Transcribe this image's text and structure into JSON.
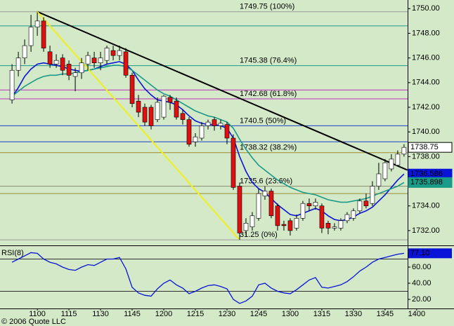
{
  "chart_data": [
    {
      "type": "candlestick",
      "x": [
        648,
        651,
        654,
        657,
        660,
        663,
        666,
        669,
        672,
        675,
        678,
        681,
        684,
        687,
        690,
        693,
        696,
        699,
        702,
        705,
        708,
        711,
        714,
        717,
        720,
        723,
        726,
        729,
        732,
        735,
        738,
        741,
        744,
        747,
        750,
        753,
        756,
        759,
        762,
        765,
        768,
        771,
        774,
        777,
        780,
        783,
        786,
        789,
        792,
        795,
        798,
        801,
        804,
        807,
        810,
        813,
        816,
        819,
        822,
        825,
        828,
        831,
        834
      ],
      "open": [
        1742.6,
        1745,
        1746,
        1747,
        1748.5,
        1749,
        1746.5,
        1745.5,
        1746,
        1745.5,
        1744.5,
        1744.8,
        1745.5,
        1746,
        1745.6,
        1745.8,
        1746.6,
        1746.2,
        1746.5,
        1744.6,
        1742.5,
        1742,
        1742,
        1741,
        1741.2,
        1742.8,
        1742.5,
        1741.5,
        1741,
        1739.2,
        1739.5,
        1740.5,
        1741,
        1740.5,
        1740.6,
        1739.5,
        1735.6,
        1732,
        1732.3,
        1733,
        1734.8,
        1735.2,
        1734,
        1732.5,
        1732.8,
        1732.2,
        1733,
        1734.2,
        1734,
        1734,
        1732.6,
        1732.2,
        1732.2,
        1732.8,
        1733,
        1733.6,
        1734.4,
        1734.2,
        1735.6,
        1736.2,
        1737,
        1737.3,
        1738.2
      ],
      "high": [
        1745.5,
        1746.5,
        1747.5,
        1749.5,
        1749.7,
        1749.3,
        1747,
        1746.3,
        1746.3,
        1745.8,
        1745.2,
        1746,
        1746.5,
        1746.5,
        1746.5,
        1747,
        1747,
        1747,
        1746.8,
        1744.8,
        1743,
        1742.3,
        1742.2,
        1742.8,
        1743,
        1743,
        1742.8,
        1741.8,
        1741.2,
        1739.9,
        1740.8,
        1741,
        1741.2,
        1741,
        1740.8,
        1739.8,
        1735.9,
        1733,
        1733.5,
        1735.4,
        1735.6,
        1735.4,
        1734.2,
        1732.8,
        1733,
        1733.3,
        1734.4,
        1734.6,
        1734.6,
        1734.2,
        1732.8,
        1732.6,
        1733,
        1733.5,
        1733.8,
        1734.6,
        1735,
        1736,
        1737.5,
        1737.8,
        1738.2,
        1738.5,
        1739
      ],
      "low": [
        1742.3,
        1744.5,
        1745.5,
        1746.5,
        1747.8,
        1746.5,
        1745.2,
        1745.2,
        1744.6,
        1744.2,
        1743.3,
        1744.3,
        1745,
        1745.2,
        1745,
        1745.5,
        1745.8,
        1745.8,
        1744.4,
        1742,
        1741.2,
        1740.5,
        1740.2,
        1740.8,
        1741,
        1741.8,
        1741,
        1740.6,
        1738.8,
        1738.8,
        1739.3,
        1740.2,
        1740.1,
        1740.2,
        1739,
        1735.3,
        1731.25,
        1731.6,
        1732,
        1732.8,
        1734.5,
        1733,
        1732,
        1732,
        1731.6,
        1732,
        1732.8,
        1733.6,
        1733.7,
        1731.8,
        1731.7,
        1732,
        1732,
        1732.6,
        1732.8,
        1733.4,
        1733.8,
        1734,
        1735.3,
        1736,
        1736.8,
        1737.2,
        1738
      ],
      "close": [
        1745,
        1746,
        1747,
        1748.5,
        1749,
        1746.8,
        1745.5,
        1745.8,
        1745,
        1744.6,
        1744.8,
        1745.6,
        1746.2,
        1745.6,
        1746,
        1746.8,
        1746.2,
        1746.6,
        1744.6,
        1742.3,
        1741.6,
        1740.8,
        1740.5,
        1742.4,
        1742.9,
        1742.4,
        1741.2,
        1741,
        1739,
        1739.6,
        1740.5,
        1740.8,
        1740.5,
        1740.7,
        1739.5,
        1735.5,
        1731.8,
        1732.6,
        1733.2,
        1735,
        1735.2,
        1733.2,
        1732.4,
        1732.4,
        1732,
        1733,
        1734.2,
        1734,
        1734.3,
        1732.2,
        1732.2,
        1732.3,
        1732.8,
        1733.3,
        1733.6,
        1734.4,
        1734,
        1735.6,
        1736.6,
        1737.5,
        1737.8,
        1738.2,
        1738.75
      ],
      "up_color": "#ffffff",
      "down_color": "#e01010",
      "series": [
        {
          "color": "#0a14d8",
          "values": [
            1742.8,
            1743.6,
            1744.5,
            1745.1,
            1745.5,
            1745.6,
            1745.5,
            1745.4,
            1745.3,
            1745.1,
            1745.0,
            1744.9,
            1745.0,
            1745.1,
            1745.3,
            1745.5,
            1745.6,
            1745.7,
            1745.5,
            1745.0,
            1744.2,
            1743.5,
            1743.0,
            1742.6,
            1742.5,
            1742.4,
            1742.2,
            1741.8,
            1741.3,
            1740.9,
            1740.7,
            1740.6,
            1740.6,
            1740.5,
            1740.3,
            1739.5,
            1738.0,
            1736.8,
            1735.9,
            1735.4,
            1735.1,
            1734.6,
            1734.1,
            1733.7,
            1733.3,
            1733.2,
            1733.4,
            1733.6,
            1733.8,
            1733.6,
            1733.2,
            1732.9,
            1732.8,
            1732.9,
            1733.1,
            1733.4,
            1733.6,
            1733.9,
            1734.4,
            1734.9,
            1735.5,
            1736.1,
            1736.586
          ]
        },
        {
          "color": "#1a9a88",
          "values": [
            1742.9,
            1743.3,
            1743.7,
            1744.0,
            1744.3,
            1744.5,
            1744.6,
            1744.6,
            1744.7,
            1744.7,
            1744.8,
            1744.9,
            1745.0,
            1745.1,
            1745.2,
            1745.3,
            1745.4,
            1745.4,
            1745.3,
            1745.0,
            1744.6,
            1744.2,
            1743.8,
            1743.4,
            1743.1,
            1742.9,
            1742.6,
            1742.3,
            1742.0,
            1741.7,
            1741.5,
            1741.3,
            1741.2,
            1741.0,
            1740.8,
            1740.3,
            1739.4,
            1738.6,
            1737.9,
            1737.3,
            1736.9,
            1736.5,
            1736.1,
            1735.8,
            1735.5,
            1735.3,
            1735.1,
            1735.0,
            1734.9,
            1734.7,
            1734.5,
            1734.4,
            1734.3,
            1734.3,
            1734.4,
            1734.5,
            1734.6,
            1734.8,
            1735.0,
            1735.2,
            1735.4,
            1735.6,
            1735.898
          ]
        }
      ],
      "levels": [
        {
          "label": "1749.75 (100%)",
          "value": 1749.75,
          "color": "#9a9a9a"
        },
        {
          "label": "1745.38 (76.4%)",
          "value": 1745.38,
          "color": "#1a9a88"
        },
        {
          "label": "1742.68 (61.8%)",
          "value": 1742.68,
          "color": "#c030c0"
        },
        {
          "label": "1740.5 (50%)",
          "value": 1740.5,
          "color": "#2040c8"
        },
        {
          "label": "1738.32 (38.2%)",
          "value": 1738.32,
          "color": "#a08a30"
        },
        {
          "label": "1735.6 (23.6%)",
          "value": 1735.6,
          "color": "#8a8a6a"
        },
        {
          "label": "31.25 (0%)",
          "value": 1731.25,
          "color": "#9a9a9a"
        }
      ],
      "hlines": [
        {
          "value": 1748.6,
          "color": "#1a9a88"
        },
        {
          "value": 1743.4,
          "color": "#c030c0"
        },
        {
          "value": 1739.2,
          "color": "#2040c8"
        },
        {
          "value": 1735.0,
          "color": "#a08a30"
        }
      ],
      "trendlines": [
        {
          "color": "#000000",
          "x": [
            660,
            835.7
          ],
          "y": [
            1749.75,
            1736.9
          ]
        },
        {
          "color": "#f0f020",
          "x": [
            660,
            755.7
          ],
          "y": [
            1749.75,
            1731.3
          ]
        }
      ],
      "xlim": [
        642.3,
        835.7
      ],
      "ylim": [
        1730.8,
        1750.7
      ],
      "yticks": [
        {
          "value": 1750,
          "label": "1750.00"
        },
        {
          "value": 1748,
          "label": "1748.00"
        },
        {
          "value": 1746,
          "label": "1746.00"
        },
        {
          "value": 1744,
          "label": "1744.00"
        },
        {
          "value": 1742,
          "label": "1742.00"
        },
        {
          "value": 1740,
          "label": "1740.00"
        },
        {
          "value": 1738,
          "label": "1738.00"
        },
        {
          "value": 1736,
          "label": "1736.00"
        },
        {
          "value": 1734,
          "label": "1734.00"
        },
        {
          "value": 1732,
          "label": "1732.00"
        }
      ]
    },
    {
      "type": "line",
      "title": "RSI(8)",
      "x": [
        648,
        651,
        654,
        657,
        660,
        663,
        666,
        669,
        672,
        675,
        678,
        681,
        684,
        687,
        690,
        693,
        696,
        699,
        702,
        705,
        708,
        711,
        714,
        717,
        720,
        723,
        726,
        729,
        732,
        735,
        738,
        741,
        744,
        747,
        750,
        753,
        756,
        759,
        762,
        765,
        768,
        771,
        774,
        777,
        780,
        783,
        786,
        789,
        792,
        795,
        798,
        801,
        804,
        807,
        810,
        813,
        816,
        819,
        822,
        825,
        828,
        831,
        834
      ],
      "color": "#0a14d8",
      "values": [
        66,
        70,
        74,
        78,
        77,
        70,
        66,
        64,
        60,
        57,
        56,
        60,
        63,
        62,
        66,
        70,
        70,
        72,
        58,
        35,
        28,
        25,
        24,
        33,
        40,
        44,
        38,
        34,
        27,
        30,
        34,
        37,
        38,
        36,
        33,
        20,
        15,
        18,
        24,
        38,
        40,
        34,
        30,
        28,
        27,
        32,
        38,
        44,
        47,
        35,
        34,
        36,
        38,
        42,
        48,
        55,
        60,
        66,
        70,
        72,
        74,
        76,
        77.1
      ],
      "value_labels": [
        null,
        null,
        null,
        null,
        null,
        null,
        null,
        null,
        null,
        null,
        null,
        null,
        null,
        null,
        null,
        null,
        null,
        null,
        null,
        null,
        null,
        null,
        null,
        null,
        null,
        null,
        null,
        null,
        null,
        null,
        null,
        null,
        null,
        null,
        null,
        null,
        null,
        null,
        null,
        null,
        null,
        null,
        null,
        null,
        null,
        null,
        null,
        null,
        null,
        null,
        null,
        null,
        null,
        null,
        null,
        null,
        null,
        null,
        null,
        null,
        null,
        null,
        "77.10"
      ],
      "hlines": [
        {
          "value": 70,
          "color": "#303030"
        },
        {
          "value": 30,
          "color": "#303030"
        }
      ],
      "xlim": [
        642.3,
        835.7
      ],
      "ylim": [
        8.7,
        85.2
      ],
      "yticks": [
        {
          "value": 60,
          "label": "60.00"
        },
        {
          "value": 40,
          "label": "40.00"
        },
        {
          "value": 20,
          "label": "20.00"
        }
      ],
      "xticks": [
        {
          "value": 660,
          "label": "1100"
        },
        {
          "value": 675,
          "label": "1115"
        },
        {
          "value": 690,
          "label": "1130"
        },
        {
          "value": 705,
          "label": "1145"
        },
        {
          "value": 720,
          "label": "1200"
        },
        {
          "value": 735,
          "label": "1215"
        },
        {
          "value": 750,
          "label": "1230"
        },
        {
          "value": 765,
          "label": "1245"
        },
        {
          "value": 780,
          "label": "1300"
        },
        {
          "value": 795,
          "label": "1315"
        },
        {
          "value": 810,
          "label": "1330"
        },
        {
          "value": 825,
          "label": "1345"
        },
        {
          "value": 840,
          "label": "1400"
        }
      ],
      "footer": "© 2006 Quote LLC"
    }
  ]
}
